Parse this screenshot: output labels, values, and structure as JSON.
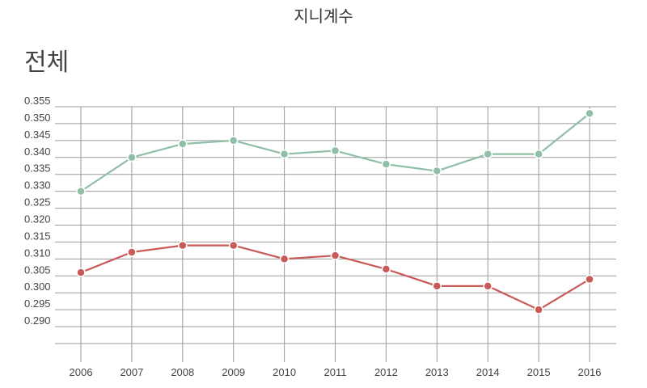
{
  "chart_data": {
    "type": "line",
    "title": "지니계수",
    "subtitle": "전체",
    "x": [
      "2006",
      "2007",
      "2008",
      "2009",
      "2010",
      "2011",
      "2012",
      "2013",
      "2014",
      "2015",
      "2016"
    ],
    "series": [
      {
        "color": "#8fbfa6",
        "values": [
          0.33,
          0.34,
          0.344,
          0.345,
          0.341,
          0.342,
          0.338,
          0.336,
          0.341,
          0.341,
          0.353
        ]
      },
      {
        "color": "#c85a57",
        "values": [
          0.306,
          0.312,
          0.314,
          0.314,
          0.31,
          0.311,
          0.307,
          0.302,
          0.302,
          0.295,
          0.304
        ]
      }
    ],
    "y_ticks": [
      "0.355",
      "0.350",
      "0.345",
      "0.340",
      "0.335",
      "0.330",
      "0.325",
      "0.320",
      "0.315",
      "0.310",
      "0.305",
      "0.300",
      "0.295",
      "0.290"
    ],
    "ylim": [
      0.285,
      0.355
    ],
    "grid": true,
    "legend": "none"
  }
}
